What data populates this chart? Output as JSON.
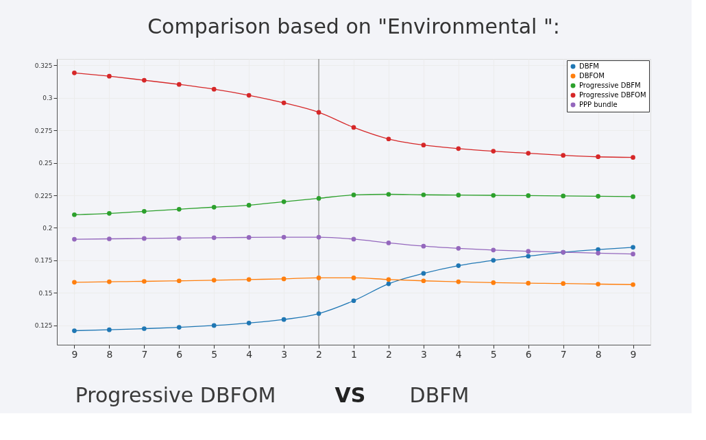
{
  "chart_data": {
    "type": "line",
    "title": "Comparison based on \"Environmental \":",
    "categories": [
      "9",
      "8",
      "7",
      "6",
      "5",
      "4",
      "3",
      "2",
      "1",
      "2",
      "3",
      "4",
      "5",
      "6",
      "7",
      "8",
      "9"
    ],
    "series": [
      {
        "name": "DBFM",
        "color": "#1f77b4",
        "values": [
          0.1208,
          0.1215,
          0.1224,
          0.1234,
          0.1248,
          0.1267,
          0.1294,
          0.134,
          0.1439,
          0.1569,
          0.1649,
          0.1709,
          0.175,
          0.1782,
          0.1812,
          0.1833,
          0.185
        ]
      },
      {
        "name": "DBFOM",
        "color": "#ff7f0e",
        "values": [
          0.1581,
          0.1585,
          0.1588,
          0.1592,
          0.1597,
          0.1602,
          0.1607,
          0.1615,
          0.1615,
          0.1602,
          0.1592,
          0.1585,
          0.1578,
          0.1574,
          0.1571,
          0.1567,
          0.1563
        ]
      },
      {
        "name": "Progressive DBFM",
        "color": "#2ca02c",
        "values": [
          0.2101,
          0.2111,
          0.2127,
          0.2143,
          0.2159,
          0.2174,
          0.2201,
          0.2227,
          0.2253,
          0.2258,
          0.2254,
          0.2252,
          0.225,
          0.2248,
          0.2245,
          0.2243,
          0.224
        ]
      },
      {
        "name": "Progressive DBFOM",
        "color": "#d62728",
        "values": [
          0.3193,
          0.3167,
          0.3136,
          0.3104,
          0.3067,
          0.302,
          0.2962,
          0.2889,
          0.2773,
          0.2684,
          0.2637,
          0.261,
          0.259,
          0.2574,
          0.2558,
          0.2547,
          0.2542
        ]
      },
      {
        "name": "PPP bundle",
        "color": "#9467bd",
        "values": [
          0.1912,
          0.1915,
          0.1918,
          0.1921,
          0.1924,
          0.1926,
          0.1928,
          0.1928,
          0.1913,
          0.1884,
          0.1859,
          0.1842,
          0.1829,
          0.1819,
          0.1812,
          0.1805,
          0.1798
        ]
      }
    ],
    "ylim": [
      0.11,
      0.33
    ],
    "yticks": [
      0.125,
      {
        "value": 0.15,
        "label": "0.15"
      },
      0.175,
      {
        "value": 0.2,
        "label": "0.2"
      },
      0.225,
      {
        "value": 0.25,
        "label": "0.25"
      },
      0.275,
      {
        "value": 0.3,
        "label": "0.3"
      },
      0.325
    ],
    "grid": true,
    "legend": "top right",
    "marker": "circle",
    "line_style": "solid",
    "ref_lines": [
      {
        "axis": "x",
        "value": "2",
        "color": "#999999"
      }
    ],
    "annotations": [
      "Progressive DBFOM",
      "VS",
      "DBFM"
    ]
  }
}
